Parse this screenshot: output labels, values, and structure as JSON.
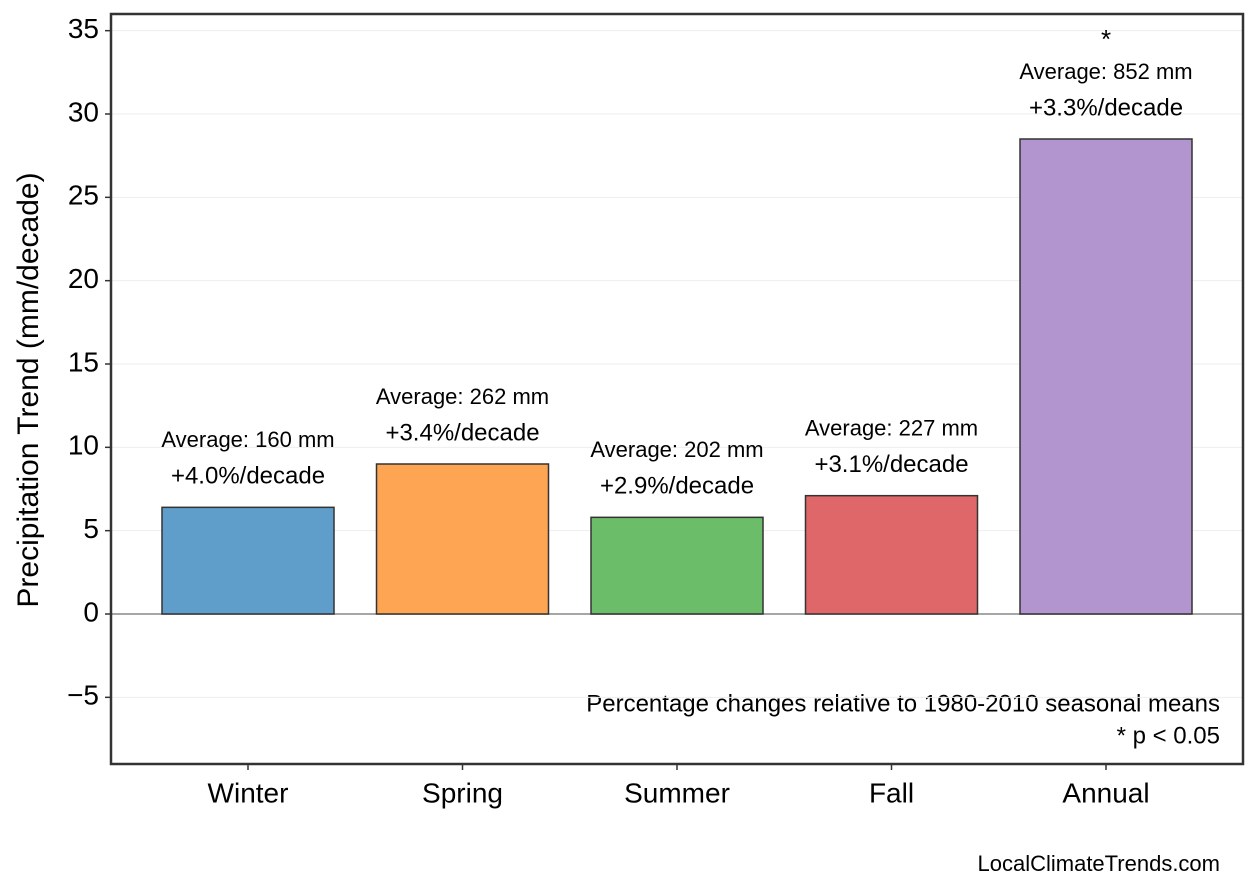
{
  "chart_data": {
    "type": "bar",
    "y_label": "Precipitation Trend (mm/decade)",
    "categories": [
      "Winter",
      "Spring",
      "Summer",
      "Fall",
      "Annual"
    ],
    "values": [
      6.4,
      9.0,
      5.8,
      7.1,
      28.5
    ],
    "colors": [
      "#5f9ecb",
      "#fea553",
      "#6bbd6a",
      "#e06769",
      "#b294cf"
    ],
    "percent_labels": [
      "+4.0%/decade",
      "+3.4%/decade",
      "+2.9%/decade",
      "+3.1%/decade",
      "+3.3%/decade"
    ],
    "average_labels": [
      "Average: 160 mm",
      "Average: 262 mm",
      "Average: 202 mm",
      "Average: 227 mm",
      "Average: 852 mm"
    ],
    "significant": [
      false,
      false,
      false,
      false,
      true
    ],
    "significance_marker": "*",
    "ylim": [
      -9,
      36
    ],
    "yticks": [
      {
        "value": -5,
        "label": "−5"
      },
      0,
      5,
      10,
      15,
      20,
      25,
      30,
      35
    ],
    "grid": true,
    "notes": [
      "Percentage changes relative to 1980-2010 seasonal means",
      "* p < 0.05"
    ],
    "source": "LocalClimateTrends.com"
  }
}
